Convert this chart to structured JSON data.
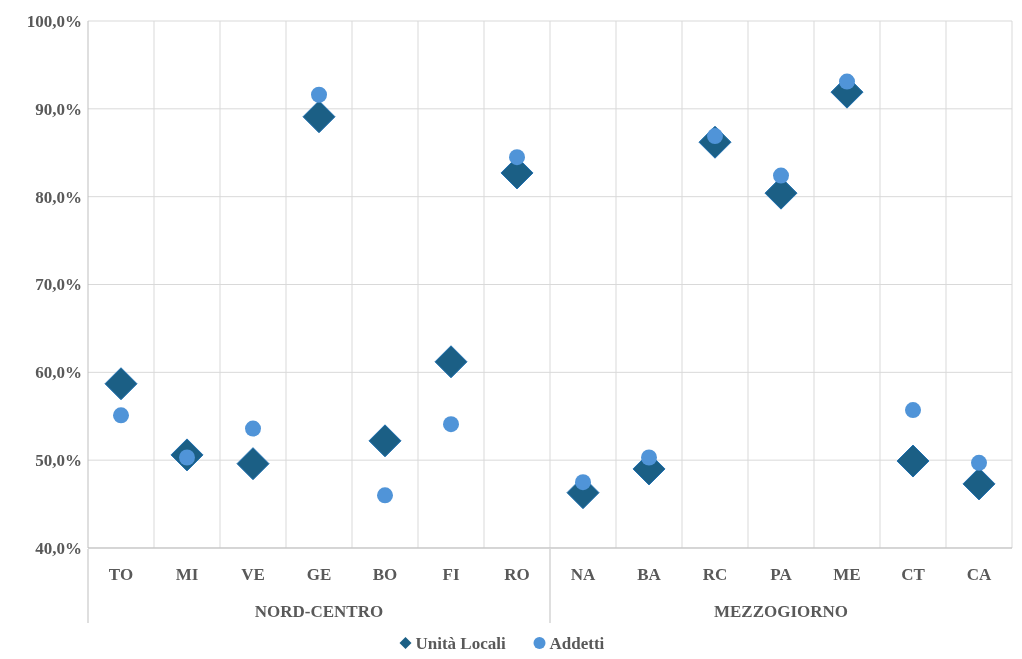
{
  "chart_data": {
    "type": "scatter",
    "categories": [
      "TO",
      "MI",
      "VE",
      "GE",
      "BO",
      "FI",
      "RO",
      "NA",
      "BA",
      "RC",
      "PA",
      "ME",
      "CT",
      "CA"
    ],
    "series": [
      {
        "name": "Unità Locali",
        "color": "#1b5f85",
        "marker": "diamond",
        "values": [
          58.7,
          50.6,
          49.6,
          89.1,
          52.2,
          61.2,
          82.7,
          46.3,
          49.0,
          86.2,
          80.4,
          91.9,
          49.9,
          47.3
        ]
      },
      {
        "name": "Addetti",
        "color": "#5094d8",
        "marker": "circle",
        "values": [
          55.1,
          50.3,
          53.6,
          91.6,
          46.0,
          54.1,
          84.5,
          47.5,
          50.3,
          86.9,
          82.4,
          93.1,
          55.7,
          49.7
        ]
      }
    ],
    "ylim": [
      40,
      100
    ],
    "yticks": [
      {
        "value": 40,
        "label": "40,0%"
      },
      {
        "value": 50,
        "label": "50,0%"
      },
      {
        "value": 60,
        "label": "60,0%"
      },
      {
        "value": 70,
        "label": "70,0%"
      },
      {
        "value": 80,
        "label": "80,0%"
      },
      {
        "value": 90,
        "label": "90,0%"
      },
      {
        "value": 100,
        "label": "100,0%"
      }
    ],
    "annotations": [
      "NORD-CENTRO",
      "MEZZOGIORNO"
    ],
    "grid": true,
    "legend": "bottom"
  }
}
